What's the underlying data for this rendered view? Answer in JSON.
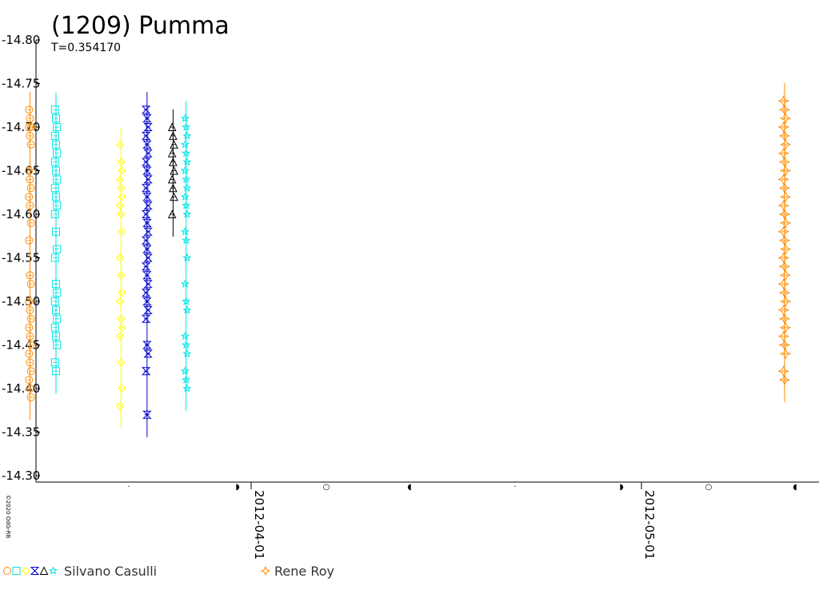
{
  "chart_data": {
    "type": "scatter",
    "title": "(1209) Pumma",
    "subtitle": "T=0.354170",
    "ylim": [
      -14.3,
      -14.8
    ],
    "y_ticks": [
      "-14.80",
      "-14.75",
      "-14.70",
      "-14.65",
      "-14.60",
      "-14.55",
      "-14.50",
      "-14.45",
      "-14.40",
      "-14.35",
      "-14.30"
    ],
    "x_ticks": [
      "2012-04-01",
      "2012-05-01"
    ],
    "x_marker_symbols": [
      "·",
      "◗",
      "○",
      "◖",
      "·",
      "◗",
      "○",
      "◖"
    ],
    "copyright": "©2020 OdG-RB",
    "legend": [
      {
        "label": "Silvano Casulli",
        "symbols": [
          "circle",
          "square",
          "diamond",
          "hourglass",
          "triangle",
          "star"
        ]
      },
      {
        "label": "Rene Roy",
        "symbols": [
          "cross-star"
        ]
      }
    ],
    "series": [
      {
        "observer": "Silvano Casulli",
        "date": "2012-03-15",
        "symbol": "circle",
        "color": "#ff8c00",
        "y": [
          -14.72,
          -14.71,
          -14.7,
          -14.7,
          -14.69,
          -14.68,
          -14.65,
          -14.64,
          -14.63,
          -14.62,
          -14.61,
          -14.59,
          -14.57,
          -14.53,
          -14.52,
          -14.5,
          -14.49,
          -14.48,
          -14.47,
          -14.46,
          -14.45,
          -14.44,
          -14.43,
          -14.42,
          -14.41,
          -14.4,
          -14.39
        ]
      },
      {
        "observer": "Silvano Casulli",
        "date": "2012-03-17",
        "symbol": "square",
        "color": "#00e5e5",
        "y": [
          -14.72,
          -14.71,
          -14.7,
          -14.69,
          -14.68,
          -14.67,
          -14.66,
          -14.65,
          -14.64,
          -14.63,
          -14.62,
          -14.61,
          -14.6,
          -14.58,
          -14.56,
          -14.55,
          -14.52,
          -14.51,
          -14.5,
          -14.49,
          -14.48,
          -14.47,
          -14.46,
          -14.45,
          -14.43,
          -14.42
        ]
      },
      {
        "observer": "Silvano Casulli",
        "date": "2012-03-22",
        "symbol": "diamond",
        "color": "#ffff00",
        "y": [
          -14.68,
          -14.66,
          -14.65,
          -14.64,
          -14.63,
          -14.62,
          -14.61,
          -14.6,
          -14.58,
          -14.55,
          -14.53,
          -14.51,
          -14.5,
          -14.48,
          -14.47,
          -14.46,
          -14.43,
          -14.4,
          -14.38
        ]
      },
      {
        "observer": "Silvano Casulli",
        "date": "2012-03-24",
        "symbol": "hourglass",
        "color": "#0000cd",
        "y": [
          -14.72,
          -14.71,
          -14.7,
          -14.69,
          -14.68,
          -14.67,
          -14.66,
          -14.65,
          -14.64,
          -14.63,
          -14.62,
          -14.61,
          -14.6,
          -14.59,
          -14.58,
          -14.57,
          -14.56,
          -14.55,
          -14.54,
          -14.53,
          -14.52,
          -14.51,
          -14.5,
          -14.49,
          -14.48,
          -14.45,
          -14.44,
          -14.42,
          -14.37
        ]
      },
      {
        "observer": "Silvano Casulli",
        "date": "2012-03-26",
        "symbol": "triangle",
        "color": "#000000",
        "y": [
          -14.7,
          -14.69,
          -14.68,
          -14.67,
          -14.66,
          -14.65,
          -14.64,
          -14.63,
          -14.62,
          -14.6
        ]
      },
      {
        "observer": "Silvano Casulli",
        "date": "2012-03-27",
        "symbol": "star",
        "color": "#00e5e5",
        "y": [
          -14.71,
          -14.7,
          -14.69,
          -14.68,
          -14.67,
          -14.66,
          -14.65,
          -14.64,
          -14.63,
          -14.62,
          -14.61,
          -14.6,
          -14.58,
          -14.57,
          -14.55,
          -14.52,
          -14.5,
          -14.49,
          -14.46,
          -14.45,
          -14.44,
          -14.42,
          -14.41,
          -14.4
        ]
      },
      {
        "observer": "Rene Roy",
        "date": "2012-05-12",
        "symbol": "cross-star",
        "color": "#ff8c00",
        "y": [
          -14.73,
          -14.72,
          -14.71,
          -14.7,
          -14.69,
          -14.68,
          -14.67,
          -14.66,
          -14.65,
          -14.64,
          -14.63,
          -14.62,
          -14.61,
          -14.6,
          -14.59,
          -14.58,
          -14.57,
          -14.56,
          -14.55,
          -14.54,
          -14.53,
          -14.52,
          -14.51,
          -14.5,
          -14.49,
          -14.48,
          -14.47,
          -14.46,
          -14.45,
          -14.44,
          -14.42,
          -14.41
        ]
      }
    ]
  }
}
